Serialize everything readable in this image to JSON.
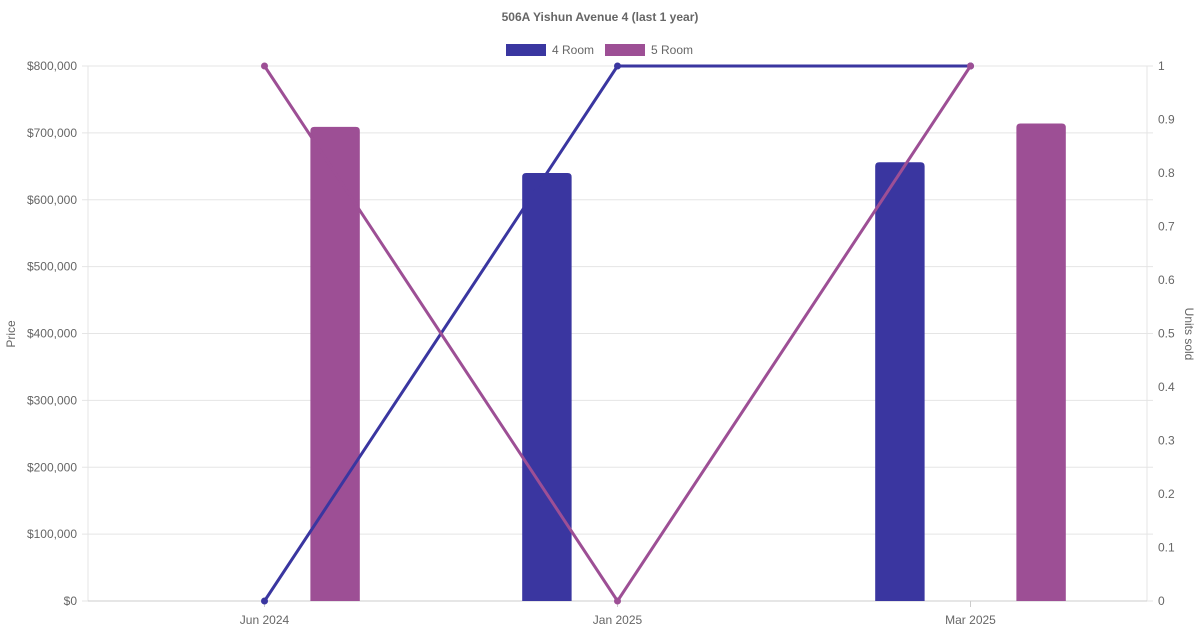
{
  "chart_data": {
    "type": "bar",
    "title": "506A Yishun Avenue 4 (last 1 year)",
    "categories": [
      "Jun 2024",
      "Jan 2025",
      "Mar 2025"
    ],
    "y_left": {
      "label": "Price",
      "min": 0,
      "max": 800000,
      "ticks": [
        "$0",
        "$100,000",
        "$200,000",
        "$300,000",
        "$400,000",
        "$500,000",
        "$600,000",
        "$700,000",
        "$800,000"
      ]
    },
    "y_right": {
      "label": "Units sold",
      "min": 0,
      "max": 1,
      "ticks": [
        "0",
        "0.1",
        "0.2",
        "0.3",
        "0.4",
        "0.5",
        "0.6",
        "0.7",
        "0.8",
        "0.9",
        "1"
      ]
    },
    "legend": [
      {
        "name": "4 Room",
        "color": "#3a36a0"
      },
      {
        "name": "5 Room",
        "color": "#9d4f95"
      }
    ],
    "legend_position": "top-center",
    "grid": true,
    "bar_series": [
      {
        "name": "4 Room",
        "color": "#3a36a0",
        "values": [
          null,
          640000,
          656000
        ]
      },
      {
        "name": "5 Room",
        "color": "#9d4f95",
        "values": [
          709000,
          null,
          714000
        ]
      }
    ],
    "line_series": [
      {
        "name": "4 Room",
        "color": "#3a36a0",
        "values": [
          0,
          1,
          1
        ]
      },
      {
        "name": "5 Room",
        "color": "#9d4f95",
        "values": [
          1,
          0,
          1
        ]
      }
    ]
  }
}
